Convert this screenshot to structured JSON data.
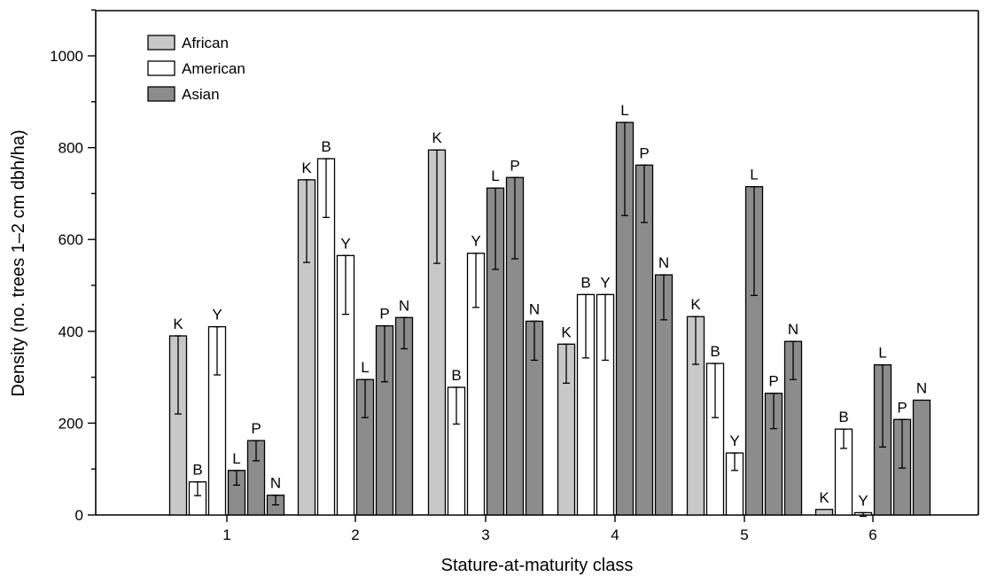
{
  "chart_data": {
    "type": "bar",
    "xlabel": "Stature-at-maturity class",
    "ylabel": "Density (no. trees 1–2 cm dbh/ha)",
    "ylim": [
      0,
      1100
    ],
    "yticks": [
      0,
      200,
      400,
      600,
      800,
      1000
    ],
    "categories": [
      "1",
      "2",
      "3",
      "4",
      "5",
      "6"
    ],
    "legend": {
      "placement": "top-left",
      "items": [
        {
          "name": "African",
          "color": "#c8c8c8"
        },
        {
          "name": "American",
          "color": "#ffffff"
        },
        {
          "name": "Asian",
          "color": "#8c8c8c"
        }
      ]
    },
    "groups": [
      {
        "category": "1",
        "bars": [
          {
            "label": "K",
            "continent": "African",
            "value": 390,
            "err_low": 220,
            "err_high": 390
          },
          {
            "label": "B",
            "continent": "American",
            "value": 72,
            "err_low": 42,
            "err_high": 72
          },
          {
            "label": "Y",
            "continent": "American",
            "value": 410,
            "err_low": 305,
            "err_high": 410
          },
          {
            "label": "L",
            "continent": "Asian",
            "value": 97,
            "err_low": 65,
            "err_high": 97
          },
          {
            "label": "P",
            "continent": "Asian",
            "value": 162,
            "err_low": 118,
            "err_high": 162
          },
          {
            "label": "N",
            "continent": "Asian",
            "value": 43,
            "err_low": 22,
            "err_high": 43
          }
        ]
      },
      {
        "category": "2",
        "bars": [
          {
            "label": "K",
            "continent": "African",
            "value": 730,
            "err_low": 550,
            "err_high": 730
          },
          {
            "label": "B",
            "continent": "American",
            "value": 776,
            "err_low": 648,
            "err_high": 776
          },
          {
            "label": "Y",
            "continent": "American",
            "value": 565,
            "err_low": 437,
            "err_high": 565
          },
          {
            "label": "L",
            "continent": "Asian",
            "value": 295,
            "err_low": 212,
            "err_high": 295
          },
          {
            "label": "P",
            "continent": "Asian",
            "value": 412,
            "err_low": 290,
            "err_high": 412
          },
          {
            "label": "N",
            "continent": "Asian",
            "value": 430,
            "err_low": 362,
            "err_high": 430
          }
        ]
      },
      {
        "category": "3",
        "bars": [
          {
            "label": "K",
            "continent": "African",
            "value": 795,
            "err_low": 548,
            "err_high": 795
          },
          {
            "label": "B",
            "continent": "American",
            "value": 278,
            "err_low": 198,
            "err_high": 278
          },
          {
            "label": "Y",
            "continent": "American",
            "value": 570,
            "err_low": 452,
            "err_high": 570
          },
          {
            "label": "L",
            "continent": "Asian",
            "value": 712,
            "err_low": 535,
            "err_high": 712
          },
          {
            "label": "P",
            "continent": "Asian",
            "value": 735,
            "err_low": 558,
            "err_high": 735
          },
          {
            "label": "N",
            "continent": "Asian",
            "value": 422,
            "err_low": 337,
            "err_high": 422
          }
        ]
      },
      {
        "category": "4",
        "bars": [
          {
            "label": "K",
            "continent": "African",
            "value": 372,
            "err_low": 287,
            "err_high": 372
          },
          {
            "label": "B",
            "continent": "American",
            "value": 480,
            "err_low": 342,
            "err_high": 480
          },
          {
            "label": "Y",
            "continent": "American",
            "value": 480,
            "err_low": 337,
            "err_high": 480
          },
          {
            "label": "L",
            "continent": "Asian",
            "value": 855,
            "err_low": 652,
            "err_high": 855
          },
          {
            "label": "P",
            "continent": "Asian",
            "value": 762,
            "err_low": 637,
            "err_high": 762
          },
          {
            "label": "N",
            "continent": "Asian",
            "value": 523,
            "err_low": 425,
            "err_high": 523
          }
        ]
      },
      {
        "category": "5",
        "bars": [
          {
            "label": "K",
            "continent": "African",
            "value": 432,
            "err_low": 328,
            "err_high": 432
          },
          {
            "label": "B",
            "continent": "American",
            "value": 330,
            "err_low": 212,
            "err_high": 330
          },
          {
            "label": "Y",
            "continent": "American",
            "value": 135,
            "err_low": 97,
            "err_high": 135
          },
          {
            "label": "L",
            "continent": "Asian",
            "value": 715,
            "err_low": 478,
            "err_high": 715
          },
          {
            "label": "P",
            "continent": "Asian",
            "value": 265,
            "err_low": 188,
            "err_high": 265
          },
          {
            "label": "N",
            "continent": "Asian",
            "value": 378,
            "err_low": 295,
            "err_high": 378
          }
        ]
      },
      {
        "category": "6",
        "bars": [
          {
            "label": "K",
            "continent": "African",
            "value": 12,
            "err_low": 12,
            "err_high": 12
          },
          {
            "label": "B",
            "continent": "American",
            "value": 187,
            "err_low": 145,
            "err_high": 187
          },
          {
            "label": "Y",
            "continent": "American",
            "value": 5,
            "err_low": -3,
            "err_high": 5
          },
          {
            "label": "L",
            "continent": "Asian",
            "value": 327,
            "err_low": 148,
            "err_high": 327
          },
          {
            "label": "P",
            "continent": "Asian",
            "value": 208,
            "err_low": 102,
            "err_high": 208
          },
          {
            "label": "N",
            "continent": "Asian",
            "value": 250,
            "err_low": 250,
            "err_high": 250
          }
        ]
      }
    ]
  }
}
